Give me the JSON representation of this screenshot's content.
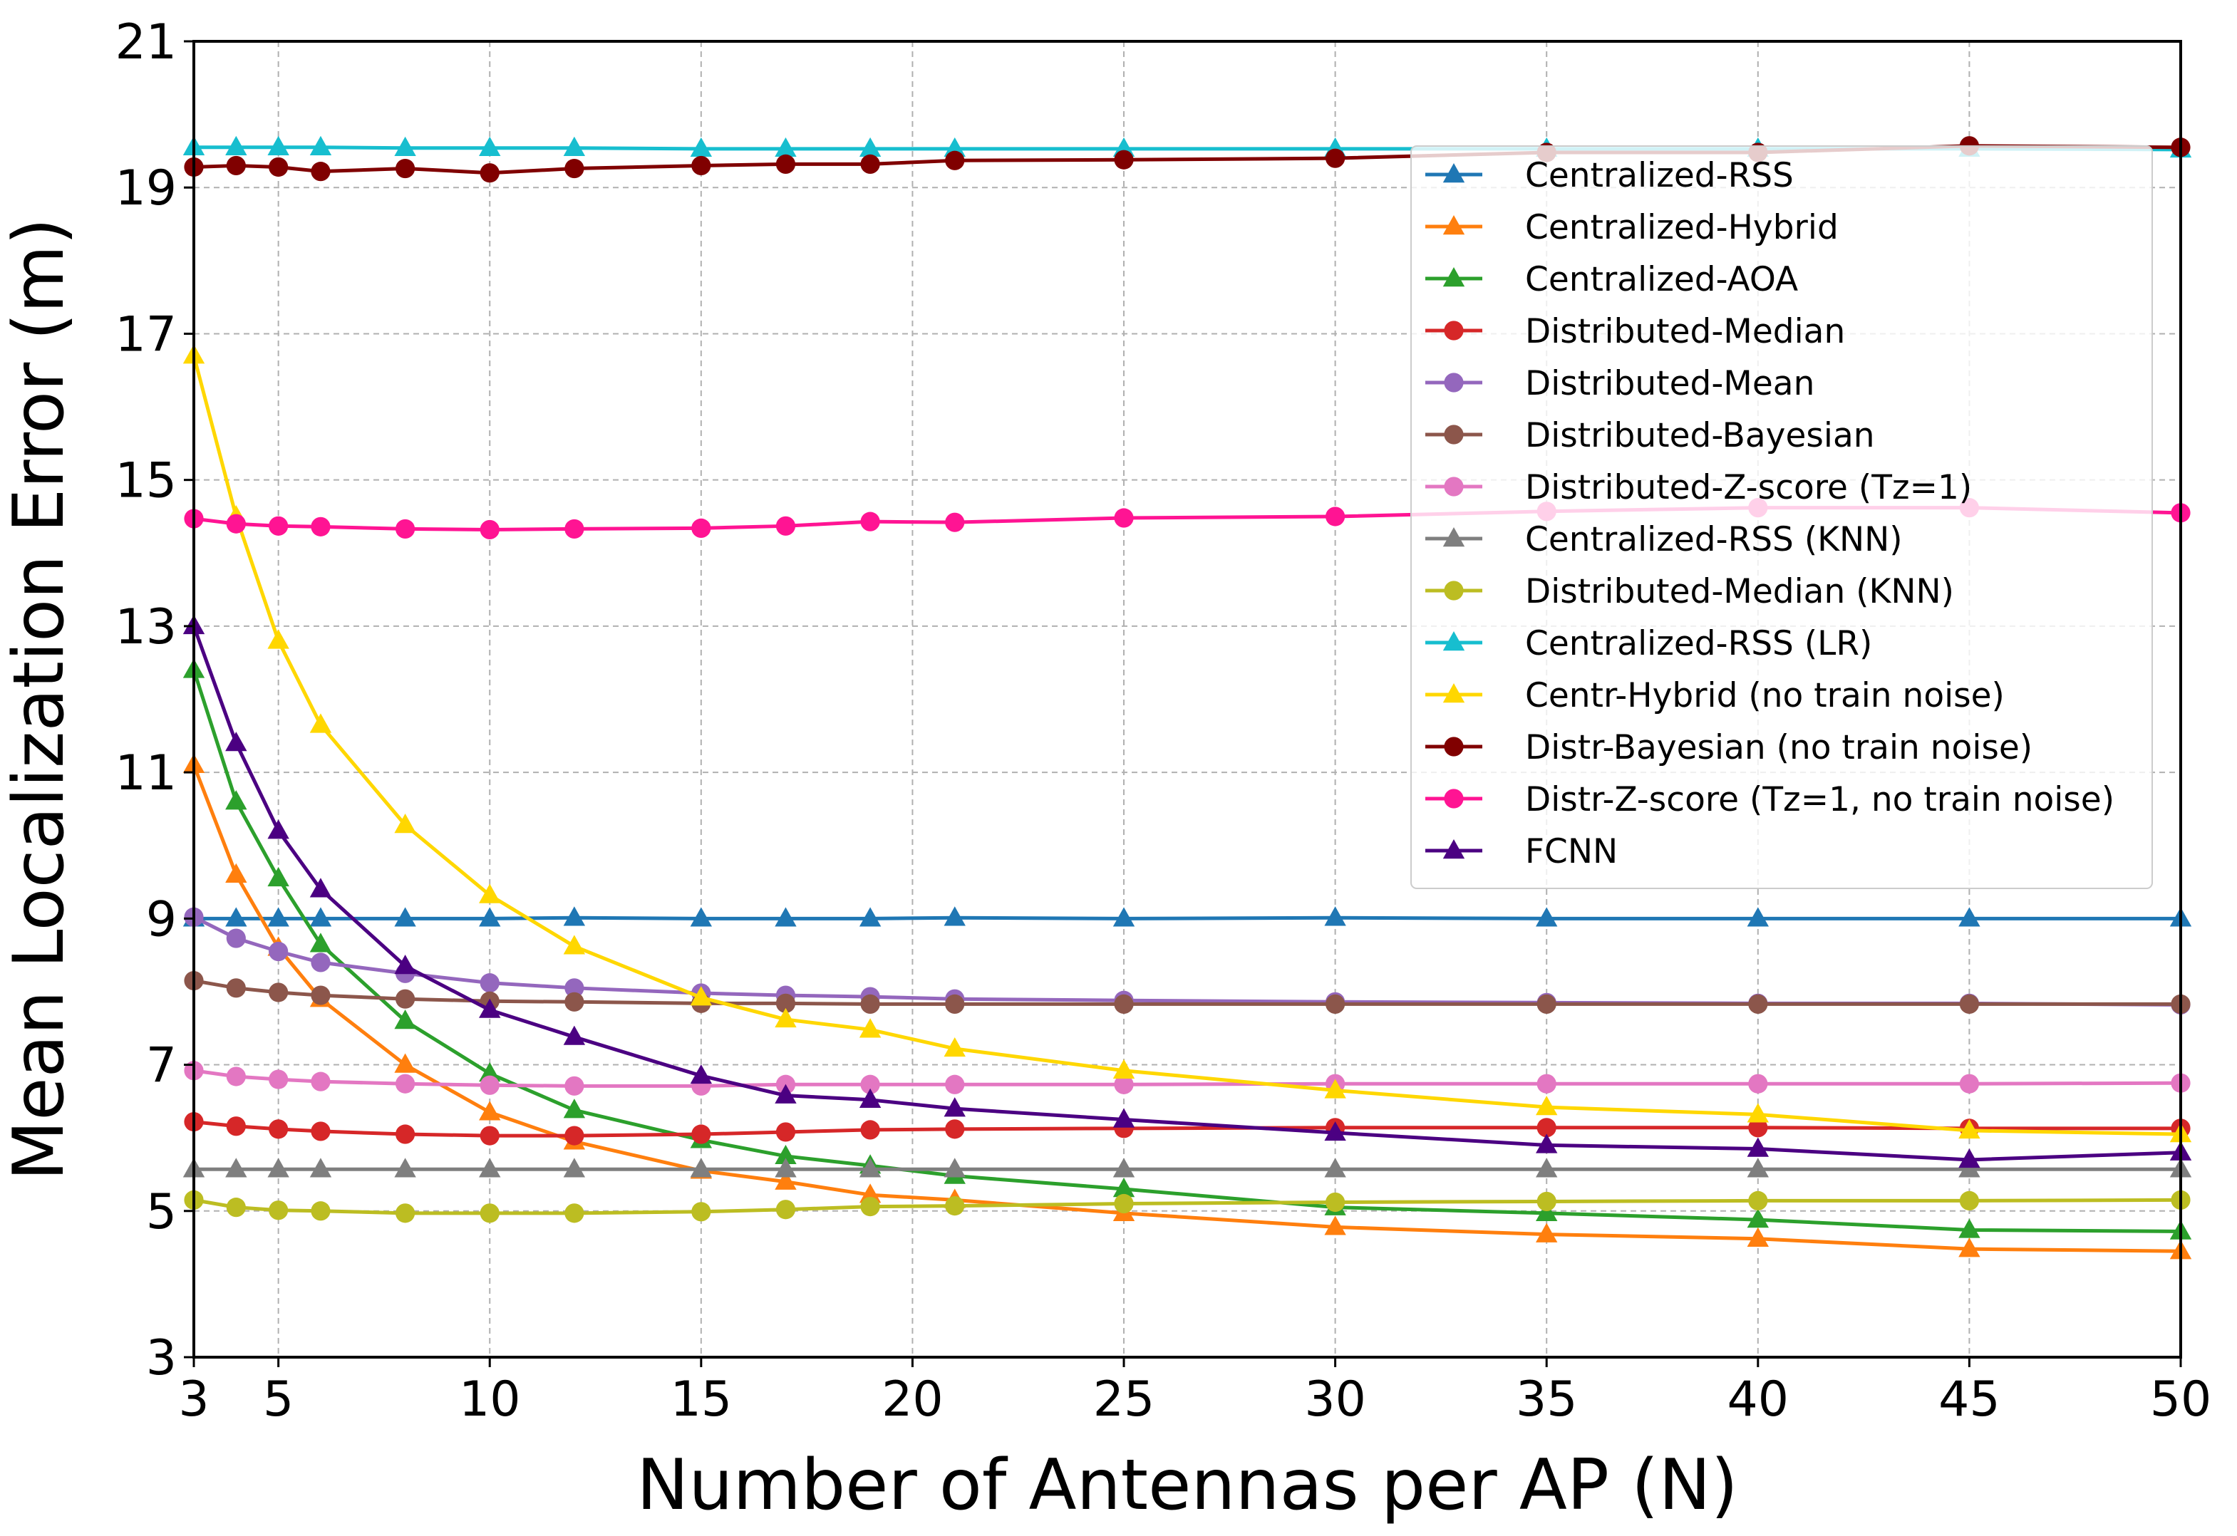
{
  "chart_data": {
    "type": "line",
    "title": "",
    "xlabel": "Number of Antennas per AP (N)",
    "ylabel": "Mean Localization Error (m)",
    "xlim": [
      3,
      50
    ],
    "ylim": [
      3,
      21
    ],
    "xticks": [
      3,
      5,
      10,
      15,
      20,
      25,
      30,
      35,
      40,
      45,
      50
    ],
    "yticks": [
      3,
      5,
      7,
      9,
      11,
      13,
      15,
      17,
      19,
      21
    ],
    "grid": true,
    "legend_position": "top-right",
    "x": [
      3,
      4,
      5,
      6,
      8,
      10,
      12,
      15,
      17,
      19,
      21,
      25,
      30,
      35,
      40,
      45,
      50
    ],
    "series": [
      {
        "name": "Centralized-RSS",
        "color": "#1f77b4",
        "marker": "triangle",
        "values": [
          9.0,
          9.0,
          9.0,
          9.0,
          9.0,
          9.0,
          9.01,
          9.0,
          9.0,
          9.0,
          9.01,
          9.0,
          9.01,
          9.0,
          9.0,
          9.0,
          9.0
        ]
      },
      {
        "name": "Centralized-Hybrid",
        "color": "#ff7f0e",
        "marker": "triangle",
        "values": [
          11.1,
          9.6,
          8.6,
          7.9,
          7.0,
          6.35,
          5.95,
          5.55,
          5.4,
          5.22,
          5.15,
          4.97,
          4.78,
          4.68,
          4.62,
          4.48,
          4.45
        ]
      },
      {
        "name": "Centralized-AOA",
        "color": "#2ca02c",
        "marker": "triangle",
        "values": [
          12.4,
          10.6,
          9.55,
          8.65,
          7.6,
          6.88,
          6.38,
          5.97,
          5.75,
          5.62,
          5.48,
          5.3,
          5.05,
          4.97,
          4.88,
          4.74,
          4.72
        ]
      },
      {
        "name": "Distributed-Median",
        "color": "#d62728",
        "marker": "circle",
        "values": [
          6.22,
          6.16,
          6.12,
          6.09,
          6.05,
          6.03,
          6.03,
          6.05,
          6.08,
          6.11,
          6.12,
          6.13,
          6.14,
          6.14,
          6.14,
          6.13,
          6.13
        ]
      },
      {
        "name": "Distributed-Mean",
        "color": "#9467bd",
        "marker": "circle",
        "values": [
          9.02,
          8.73,
          8.55,
          8.4,
          8.25,
          8.12,
          8.05,
          7.98,
          7.95,
          7.93,
          7.9,
          7.88,
          7.86,
          7.85,
          7.84,
          7.84,
          7.82
        ]
      },
      {
        "name": "Distributed-Bayesian",
        "color": "#8c564b",
        "marker": "circle",
        "values": [
          8.15,
          8.05,
          7.99,
          7.95,
          7.9,
          7.87,
          7.86,
          7.84,
          7.84,
          7.83,
          7.83,
          7.83,
          7.83,
          7.83,
          7.83,
          7.83,
          7.83
        ]
      },
      {
        "name": "Distributed-Z-score (Tz=1)",
        "color": "#e377c2",
        "marker": "circle",
        "values": [
          6.92,
          6.84,
          6.8,
          6.77,
          6.74,
          6.72,
          6.71,
          6.71,
          6.73,
          6.73,
          6.73,
          6.73,
          6.74,
          6.74,
          6.74,
          6.74,
          6.75
        ]
      },
      {
        "name": "Centralized-RSS (KNN)",
        "color": "#7f7f7f",
        "marker": "triangle",
        "values": [
          5.57,
          5.57,
          5.57,
          5.57,
          5.57,
          5.57,
          5.57,
          5.57,
          5.57,
          5.57,
          5.57,
          5.57,
          5.57,
          5.57,
          5.57,
          5.57,
          5.57
        ]
      },
      {
        "name": "Distributed-Median (KNN)",
        "color": "#bcbd22",
        "marker": "circle",
        "values": [
          5.15,
          5.05,
          5.01,
          5.0,
          4.97,
          4.97,
          4.97,
          4.99,
          5.02,
          5.06,
          5.07,
          5.1,
          5.12,
          5.13,
          5.14,
          5.14,
          5.15
        ]
      },
      {
        "name": "Centralized-RSS (LR)",
        "color": "#17becf",
        "marker": "triangle",
        "values": [
          19.55,
          19.55,
          19.55,
          19.55,
          19.54,
          19.54,
          19.54,
          19.53,
          19.53,
          19.53,
          19.53,
          19.53,
          19.53,
          19.53,
          19.53,
          19.53,
          19.52
        ]
      },
      {
        "name": "Centr-Hybrid (no train noise)",
        "color": "#ffd700",
        "marker": "triangle",
        "values": [
          16.7,
          14.5,
          12.8,
          11.65,
          10.28,
          9.32,
          8.62,
          7.92,
          7.62,
          7.48,
          7.22,
          6.92,
          6.65,
          6.42,
          6.32,
          6.1,
          6.05
        ]
      },
      {
        "name": "Distr-Bayesian (no train noise)",
        "color": "#800000",
        "marker": "circle",
        "values": [
          19.28,
          19.3,
          19.28,
          19.22,
          19.26,
          19.2,
          19.26,
          19.3,
          19.32,
          19.32,
          19.37,
          19.38,
          19.4,
          19.48,
          19.48,
          19.57,
          19.55
        ]
      },
      {
        "name": "Distr-Z-score (Tz=1, no train noise)",
        "color": "#ff1493",
        "marker": "circle",
        "values": [
          14.47,
          14.4,
          14.37,
          14.36,
          14.33,
          14.32,
          14.33,
          14.34,
          14.37,
          14.43,
          14.42,
          14.48,
          14.5,
          14.57,
          14.62,
          14.62,
          14.55
        ]
      },
      {
        "name": "FCNN",
        "color": "#4b0082",
        "marker": "triangle",
        "values": [
          13.0,
          11.4,
          10.2,
          9.4,
          8.35,
          7.75,
          7.38,
          6.85,
          6.58,
          6.52,
          6.4,
          6.25,
          6.07,
          5.9,
          5.85,
          5.7,
          5.8
        ]
      }
    ]
  }
}
